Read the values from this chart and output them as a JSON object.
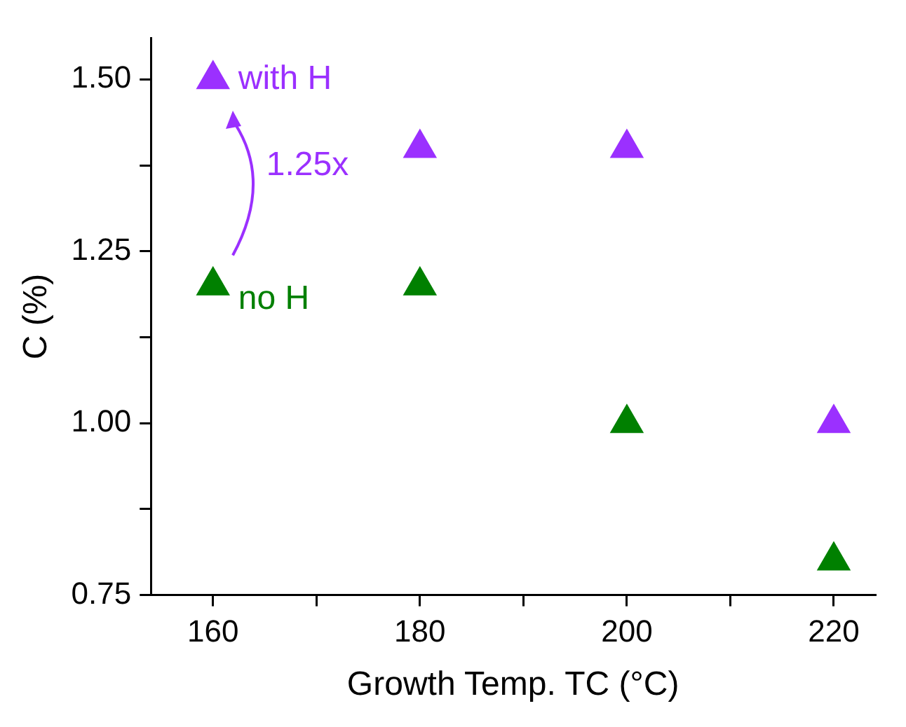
{
  "chart_data": {
    "type": "scatter",
    "xlabel": "Growth Temp. TC (°C)",
    "ylabel": "C (%)",
    "xlim": [
      154,
      224
    ],
    "xticks": [
      160,
      {
        "value": 170,
        "label": null
      },
      180,
      {
        "value": 190,
        "label": null
      },
      200,
      {
        "value": 210,
        "label": null
      },
      220
    ],
    "ylim": [
      0.75,
      1.56
    ],
    "yticks": [
      {
        "value": 0.75,
        "label": "0.75"
      },
      {
        "value": 0.875,
        "label": null
      },
      {
        "value": 1,
        "label": "1.00"
      },
      {
        "value": 1.125,
        "label": null
      },
      {
        "value": 1.25,
        "label": "1.25"
      },
      {
        "value": 1.375,
        "label": null
      },
      {
        "value": 1.5,
        "label": "1.50"
      }
    ],
    "x": [
      160,
      180,
      200,
      220
    ],
    "series": [
      {
        "name": "with H",
        "color": "#9b30ff",
        "values": [
          1.5,
          1.4,
          1.4,
          1.0
        ]
      },
      {
        "name": "no H",
        "color": "#008000",
        "values": [
          1.2,
          1.2,
          1.0,
          0.8
        ]
      }
    ],
    "annotations": [
      "1.25x"
    ],
    "marker": "triangle",
    "grid": false,
    "legend": false
  }
}
